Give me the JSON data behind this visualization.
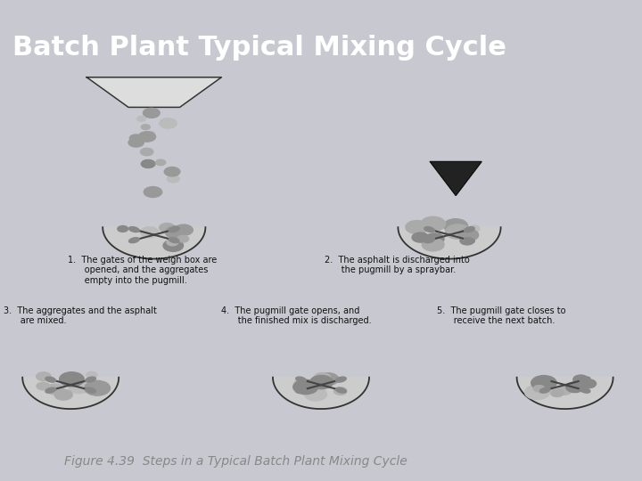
{
  "title": "Batch Plant Typical Mixing Cycle",
  "title_bg_color": "#7070c8",
  "title_text_color": "#ffffff",
  "title_font_size": 22,
  "title_font_weight": "bold",
  "fig_bg_color": "#c8c8d0",
  "content_bg_color": "#e0e0e0",
  "caption": "Figure 4.39  Steps in a Typical Batch Plant Mixing Cycle",
  "caption_color": "#888888",
  "caption_font_size": 10,
  "step_labels": [
    "1.  The gates of the weigh box are\n      opened, and the aggregates\n      empty into the pugmill.",
    "2.  The asphalt is discharged into\n      the pugmill by a spraybar.",
    "3.  The aggregates and the asphalt\n      are mixed.",
    "4.  The pugmill gate opens, and\n      the finished mix is discharged.",
    "5.  The pugmill gate closes to\n      receive the next batch."
  ],
  "step_label_font_size": 7,
  "step_label_color": "#111111"
}
